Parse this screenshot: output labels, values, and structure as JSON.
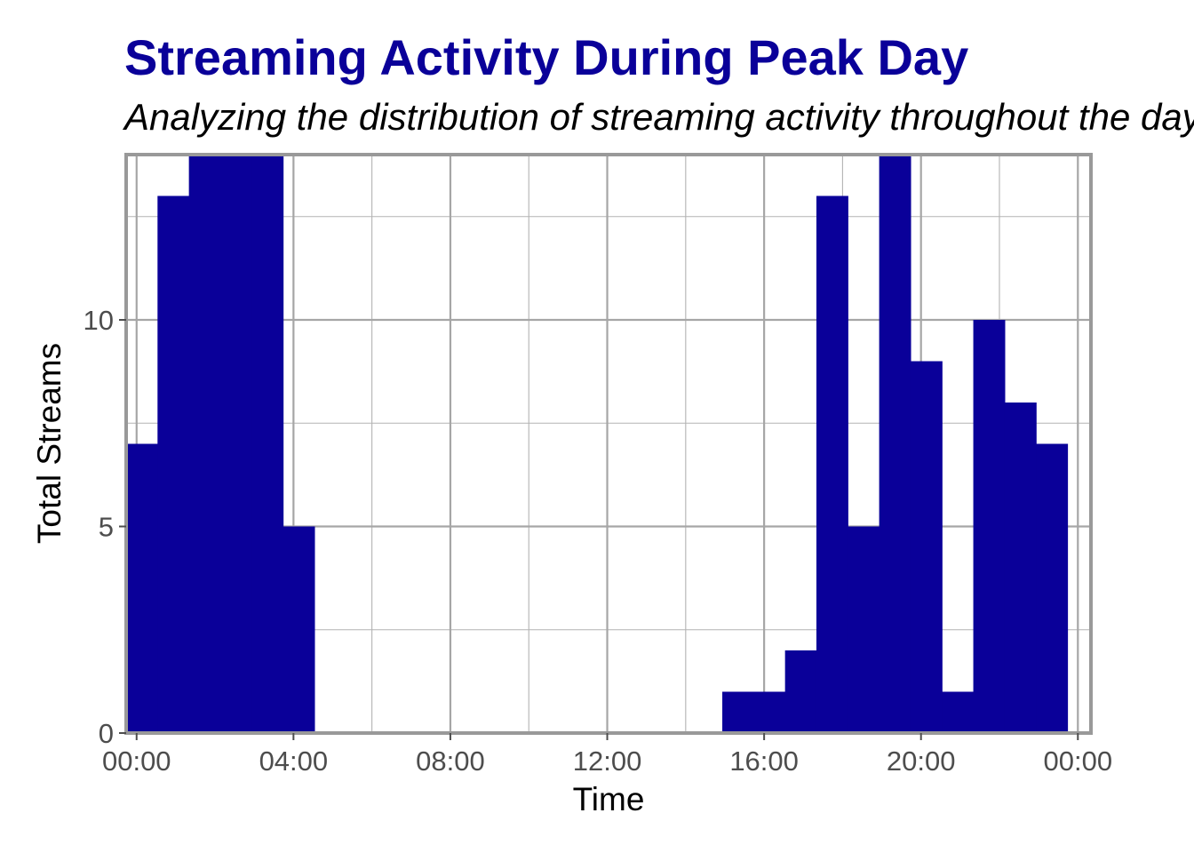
{
  "chart_data": {
    "type": "bar",
    "title": "Streaming Activity During Peak Day",
    "subtitle": "Analyzing the distribution of streaming activity throughout the day",
    "xlabel": "Time",
    "ylabel": "Total Streams",
    "bin_width_minutes": 48,
    "x_bin_starts": [
      "23:44",
      "00:32",
      "01:20",
      "02:08",
      "02:56",
      "03:44",
      "04:32",
      "05:20",
      "06:08",
      "06:56",
      "07:44",
      "08:32",
      "09:20",
      "10:08",
      "10:56",
      "11:44",
      "12:32",
      "13:20",
      "14:08",
      "14:56",
      "15:44",
      "16:32",
      "17:20",
      "18:08",
      "18:56",
      "19:44",
      "20:32",
      "21:20",
      "22:08",
      "22:56",
      "23:44"
    ],
    "values": [
      7,
      13,
      14,
      14,
      14,
      5,
      0,
      0,
      0,
      0,
      0,
      0,
      0,
      0,
      0,
      0,
      0,
      0,
      0,
      1,
      1,
      2,
      13,
      5,
      14,
      9,
      1,
      10,
      8,
      7
    ],
    "xlim": [
      "23:44",
      "00:20 (next day)"
    ],
    "ylim": [
      0,
      14
    ],
    "x_ticks": [
      "00:00",
      "04:00",
      "08:00",
      "12:00",
      "16:00",
      "20:00",
      "00:00"
    ],
    "y_ticks": [
      "0",
      "5",
      "10"
    ],
    "grid": true,
    "legend": "none",
    "colors": {
      "bars": "#0A0099",
      "title": "#0A0099",
      "grid": "#a6a6a6",
      "border": "#999999"
    }
  }
}
